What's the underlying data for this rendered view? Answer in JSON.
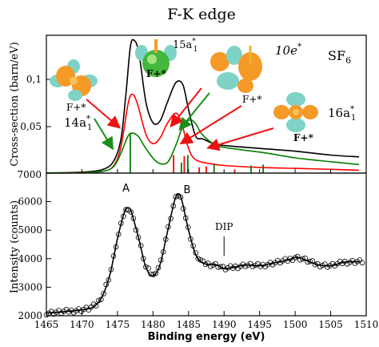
{
  "title": "F-K edge",
  "chart_data": [
    {
      "type": "line",
      "ylabel": "Cross-section (barn/eV)",
      "ytick_labels": [
        "0,1",
        "0,05"
      ],
      "ytick_values": [
        0.1,
        0.05
      ],
      "corner_tick": "7000",
      "ylim": [
        0,
        0.145
      ],
      "xlim": [
        1465,
        1510
      ],
      "molecule_label": "SF",
      "molecule_sub": "6",
      "annotations": [
        {
          "name": "14a1*",
          "base": "14a",
          "sub": "1",
          "sup": "*"
        },
        {
          "name": "15a1*",
          "base": "15a",
          "sub": "1",
          "sup": "*"
        },
        {
          "name": "10e*",
          "base": "10e",
          "sup": "*"
        },
        {
          "name": "16a1*",
          "base": "16a",
          "sub": "1",
          "sup": "*"
        }
      ],
      "fstar_labels": [
        "F+*",
        "F+*",
        "F+*",
        "F+*"
      ],
      "series": [
        {
          "color": "#000000",
          "x": [
            1465,
            1470,
            1473,
            1474.5,
            1475.5,
            1476.2,
            1476.8,
            1477.3,
            1478,
            1479,
            1480,
            1481,
            1482,
            1483.2,
            1484.2,
            1485,
            1486,
            1487,
            1488.5,
            1490,
            1495,
            1500,
            1505,
            1509
          ],
          "y": [
            0.0002,
            0.001,
            0.004,
            0.013,
            0.036,
            0.084,
            0.132,
            0.14,
            0.127,
            0.075,
            0.053,
            0.055,
            0.074,
            0.095,
            0.093,
            0.067,
            0.039,
            0.036,
            0.031,
            0.029,
            0.026,
            0.023,
            0.019,
            0.017
          ]
        },
        {
          "color": "#ff0000",
          "x": [
            1465,
            1470,
            1473,
            1474.5,
            1475.5,
            1476.5,
            1477.1,
            1477.8,
            1479,
            1480,
            1481,
            1482,
            1483.2,
            1484,
            1485,
            1486,
            1488,
            1490,
            1495,
            1500,
            1505,
            1509
          ],
          "y": [
            0.0001,
            0.0005,
            0.002,
            0.008,
            0.028,
            0.073,
            0.083,
            0.073,
            0.041,
            0.031,
            0.037,
            0.052,
            0.063,
            0.053,
            0.026,
            0.014,
            0.01,
            0.008,
            0.006,
            0.005,
            0.004,
            0.003
          ]
        },
        {
          "color": "#008000",
          "x": [
            1465,
            1470,
            1473,
            1474.5,
            1475.5,
            1476.5,
            1477.2,
            1478,
            1479,
            1480.5,
            1482,
            1483.2,
            1484.2,
            1485.2,
            1486,
            1487,
            1489,
            1492,
            1496,
            1500,
            1505,
            1509
          ],
          "y": [
            0.0001,
            0.0004,
            0.002,
            0.007,
            0.021,
            0.039,
            0.042,
            0.038,
            0.026,
            0.012,
            0.011,
            0.029,
            0.049,
            0.056,
            0.052,
            0.04,
            0.029,
            0.025,
            0.021,
            0.016,
            0.012,
            0.009
          ]
        }
      ],
      "sticks": [
        {
          "x": 1476.8,
          "h": 0.042,
          "color": "#008000"
        },
        {
          "x": 1482.9,
          "h": 0.019,
          "color": "#ff0000"
        },
        {
          "x": 1484.0,
          "h": 0.011,
          "color": "#008000"
        },
        {
          "x": 1484.4,
          "h": 0.018,
          "color": "#ff0000"
        },
        {
          "x": 1484.9,
          "h": 0.019,
          "color": "#008000"
        },
        {
          "x": 1486.5,
          "h": 0.006,
          "color": "#ff0000"
        },
        {
          "x": 1487.5,
          "h": 0.007,
          "color": "#ff0000"
        },
        {
          "x": 1488.6,
          "h": 0.009,
          "color": "#008000"
        },
        {
          "x": 1491.5,
          "h": 0.004,
          "color": "#ff0000"
        },
        {
          "x": 1493.8,
          "h": 0.008,
          "color": "#008000"
        },
        {
          "x": 1495.5,
          "h": 0.009,
          "color": "#008000"
        }
      ]
    },
    {
      "type": "scatter",
      "xlabel": "Binding energy (eV)",
      "ylabel": "Intensity (counts)",
      "xlim": [
        1465,
        1510
      ],
      "ylim": [
        2000,
        7000
      ],
      "xticks": [
        1465,
        1470,
        1475,
        1480,
        1485,
        1490,
        1495,
        1500,
        1505,
        1510
      ],
      "yticks": [
        2000,
        3000,
        4000,
        5000,
        6000
      ],
      "peak_labels": [
        {
          "text": "A",
          "x": 1476.2,
          "y": 6350
        },
        {
          "text": "B",
          "x": 1484.8,
          "y": 6300
        }
      ],
      "dip": {
        "text": "DIP",
        "x": 1490,
        "y_text": 5000,
        "y_top": 4780,
        "y_bottom": 4100
      },
      "fit_x": [
        1465,
        1467,
        1469,
        1471,
        1472,
        1473,
        1474,
        1475,
        1476,
        1476.6,
        1477,
        1478,
        1479,
        1480,
        1481,
        1482,
        1483,
        1483.5,
        1484,
        1485,
        1486,
        1487,
        1488,
        1489,
        1490,
        1491,
        1493,
        1495,
        1497,
        1499,
        1500,
        1501,
        1503,
        1505,
        1507,
        1509
      ],
      "fit_y": [
        2100,
        2130,
        2180,
        2250,
        2380,
        2750,
        3500,
        4700,
        5650,
        5780,
        5600,
        4700,
        3700,
        3400,
        3800,
        4900,
        6000,
        6250,
        6100,
        5000,
        4150,
        3850,
        3800,
        3780,
        3650,
        3680,
        3780,
        3750,
        3850,
        3950,
        4050,
        4000,
        3800,
        3750,
        3880,
        3900
      ]
    }
  ]
}
